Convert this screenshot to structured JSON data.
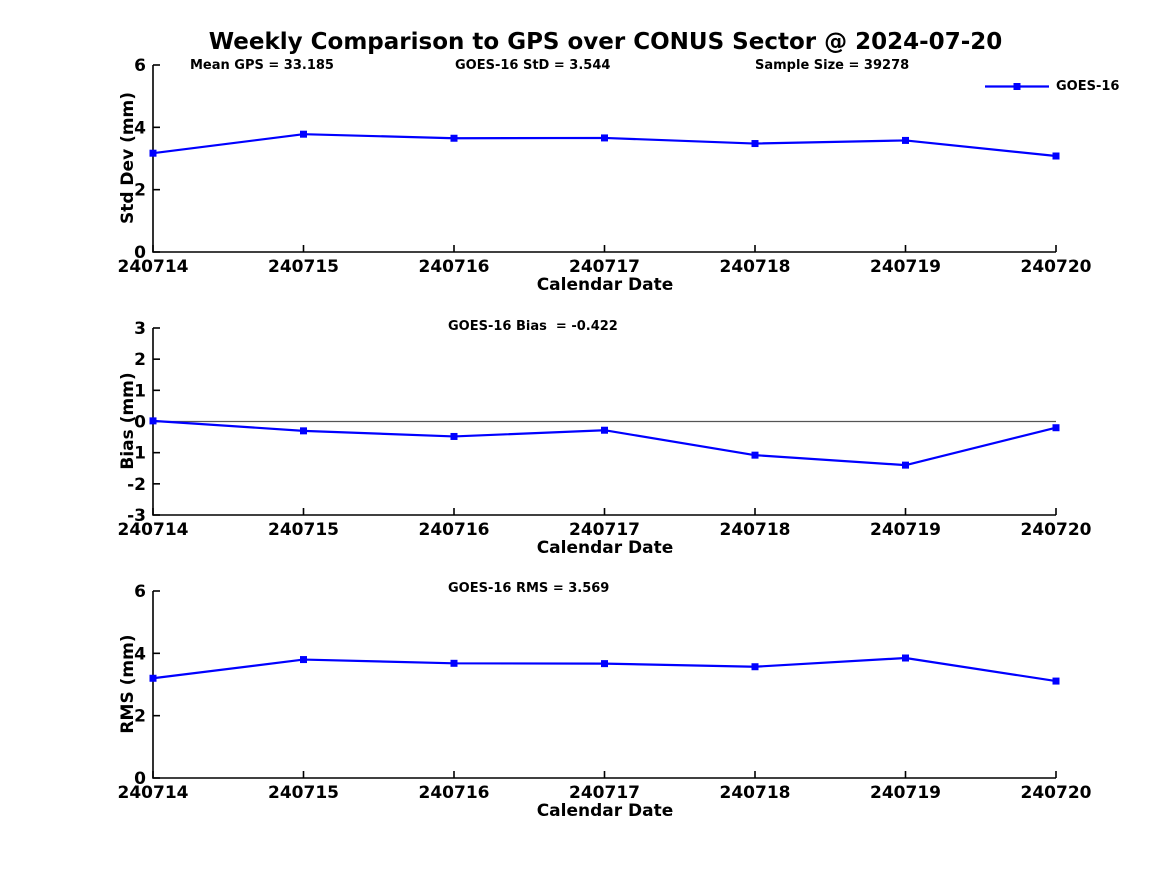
{
  "figure": {
    "title": "Weekly Comparison to GPS over CONUS Sector @ 2024-07-20",
    "background": "#ffffff",
    "legend": {
      "label": "GOES-16",
      "line_color": "#0000ff",
      "marker": "square",
      "position": "top-right"
    }
  },
  "chart_data": [
    {
      "type": "line",
      "subplot": "std-dev",
      "annotations": [
        "Mean GPS = 33.185",
        "GOES-16 StD = 3.544",
        "Sample Size = 39278"
      ],
      "categories": [
        "240714",
        "240715",
        "240716",
        "240717",
        "240718",
        "240719",
        "240720"
      ],
      "series": [
        {
          "name": "GOES-16",
          "values": [
            3.17,
            3.78,
            3.65,
            3.66,
            3.48,
            3.58,
            3.08
          ],
          "color": "#0000ff",
          "marker": "square"
        }
      ],
      "xlabel": "Calendar Date",
      "ylabel": "Std Dev (mm)",
      "ylim": [
        0,
        6
      ],
      "yticks": [
        0,
        2,
        4,
        6
      ],
      "grid": false,
      "zero_line": false
    },
    {
      "type": "line",
      "subplot": "bias",
      "annotations": [
        "GOES-16 Bias  = -0.422"
      ],
      "categories": [
        "240714",
        "240715",
        "240716",
        "240717",
        "240718",
        "240719",
        "240720"
      ],
      "series": [
        {
          "name": "GOES-16",
          "values": [
            0.02,
            -0.3,
            -0.48,
            -0.28,
            -1.08,
            -1.4,
            -0.2
          ],
          "color": "#0000ff",
          "marker": "square"
        }
      ],
      "xlabel": "Calendar Date",
      "ylabel": "Bias (mm)",
      "ylim": [
        -3,
        3
      ],
      "yticks": [
        3,
        2,
        1,
        0,
        -1,
        -2,
        -3
      ],
      "grid": false,
      "zero_line": true,
      "zero_line_color": "#555555"
    },
    {
      "type": "line",
      "subplot": "rms",
      "annotations": [
        "GOES-16 RMS = 3.569"
      ],
      "categories": [
        "240714",
        "240715",
        "240716",
        "240717",
        "240718",
        "240719",
        "240720"
      ],
      "series": [
        {
          "name": "GOES-16",
          "values": [
            3.2,
            3.8,
            3.68,
            3.67,
            3.57,
            3.85,
            3.11
          ],
          "color": "#0000ff",
          "marker": "square"
        }
      ],
      "xlabel": "Calendar Date",
      "ylabel": "RMS (mm)",
      "ylim": [
        0,
        6
      ],
      "yticks": [
        0,
        2,
        4,
        6
      ],
      "grid": false,
      "zero_line": false
    }
  ]
}
